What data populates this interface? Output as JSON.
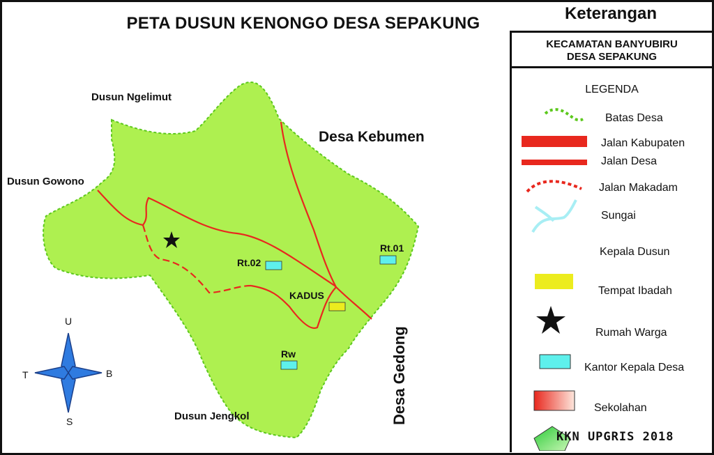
{
  "map_title": "PETA DUSUN KENONGO DESA SEPAKUNG",
  "places": {
    "ngelimut": "Dusun Ngelimut",
    "gowono": "Dusun Gowono",
    "kebumen": "Desa Kebumen",
    "gedong": "Desa Gedong",
    "jengkol": "Dusun Jengkol"
  },
  "features": {
    "rt01": "Rt.01",
    "rt02": "Rt.02",
    "kadus": "KADUS",
    "rw": "Rw"
  },
  "compass": {
    "north": "U",
    "south": "S",
    "east": "B",
    "west": "T"
  },
  "legend": {
    "heading": "Keterangan",
    "region_line1": "KECAMATAN BANYUBIRU",
    "region_line2": "DESA SEPAKUNG",
    "title": "LEGENDA",
    "items": [
      {
        "label": "Batas Desa",
        "icon": "green-dotted-line"
      },
      {
        "label": "Jalan Kabupaten",
        "icon": "thick-red-line"
      },
      {
        "label": "Jalan Desa",
        "icon": "red-line"
      },
      {
        "label": "Jalan Makadam",
        "icon": "red-dotted-curve"
      },
      {
        "label": "Sungai",
        "icon": "cyan-river"
      },
      {
        "label": "Kepala Dusun",
        "icon": "yellow-box"
      },
      {
        "label": "Tempat Ibadah",
        "icon": "star"
      },
      {
        "label": "Rumah Warga",
        "icon": "cyan-box"
      },
      {
        "label": "Kantor Kepala Desa",
        "icon": "gradient-red-box"
      },
      {
        "label": "Sekolahan",
        "icon": "green-pentagon"
      }
    ],
    "credit": "KKN UPGRIS 2018"
  },
  "colors": {
    "land": "#aef050",
    "boundary": "#5cc81c",
    "road": "#e8281e",
    "house": "#5ef0ec",
    "kadus": "#ecec1e"
  }
}
